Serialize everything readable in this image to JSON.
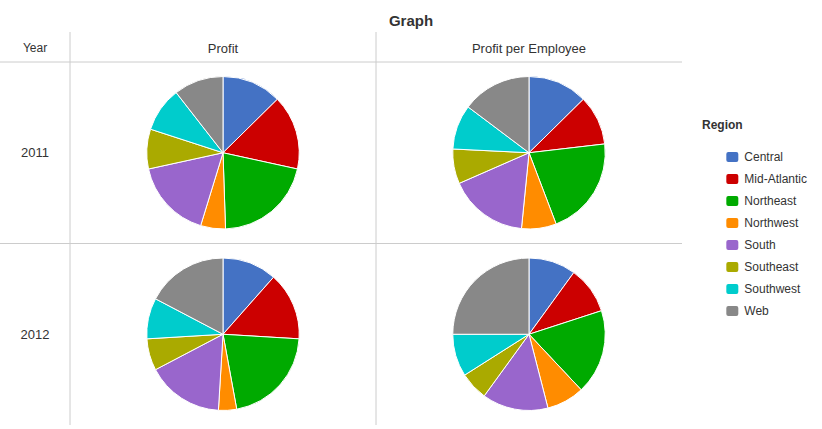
{
  "chart_data": {
    "type": "pie",
    "title": "Graph",
    "legend": "right",
    "legend_title": "Region",
    "categories": [
      "Central",
      "Mid-Atlantic",
      "Northeast",
      "Northwest",
      "South",
      "Southeast",
      "Southwest",
      "Web"
    ],
    "colors": [
      "#4472C4",
      "#CC0000",
      "#00AA00",
      "#FF8C00",
      "#9966CC",
      "#AAAA00",
      "#00CCCC",
      "#888888"
    ],
    "row_label": "Year",
    "rows": [
      "2011",
      "2012"
    ],
    "columns": [
      "Profit",
      "Profit per Employee"
    ],
    "values": [
      [
        [
          12,
          15,
          20,
          5,
          16,
          8,
          9,
          10
        ],
        [
          12,
          10,
          20,
          7,
          16,
          7,
          9,
          14
        ]
      ],
      [
        [
          12,
          15,
          22,
          4,
          17,
          7,
          9,
          18
        ],
        [
          10,
          10,
          18,
          8,
          14,
          6,
          9,
          25
        ]
      ]
    ]
  }
}
